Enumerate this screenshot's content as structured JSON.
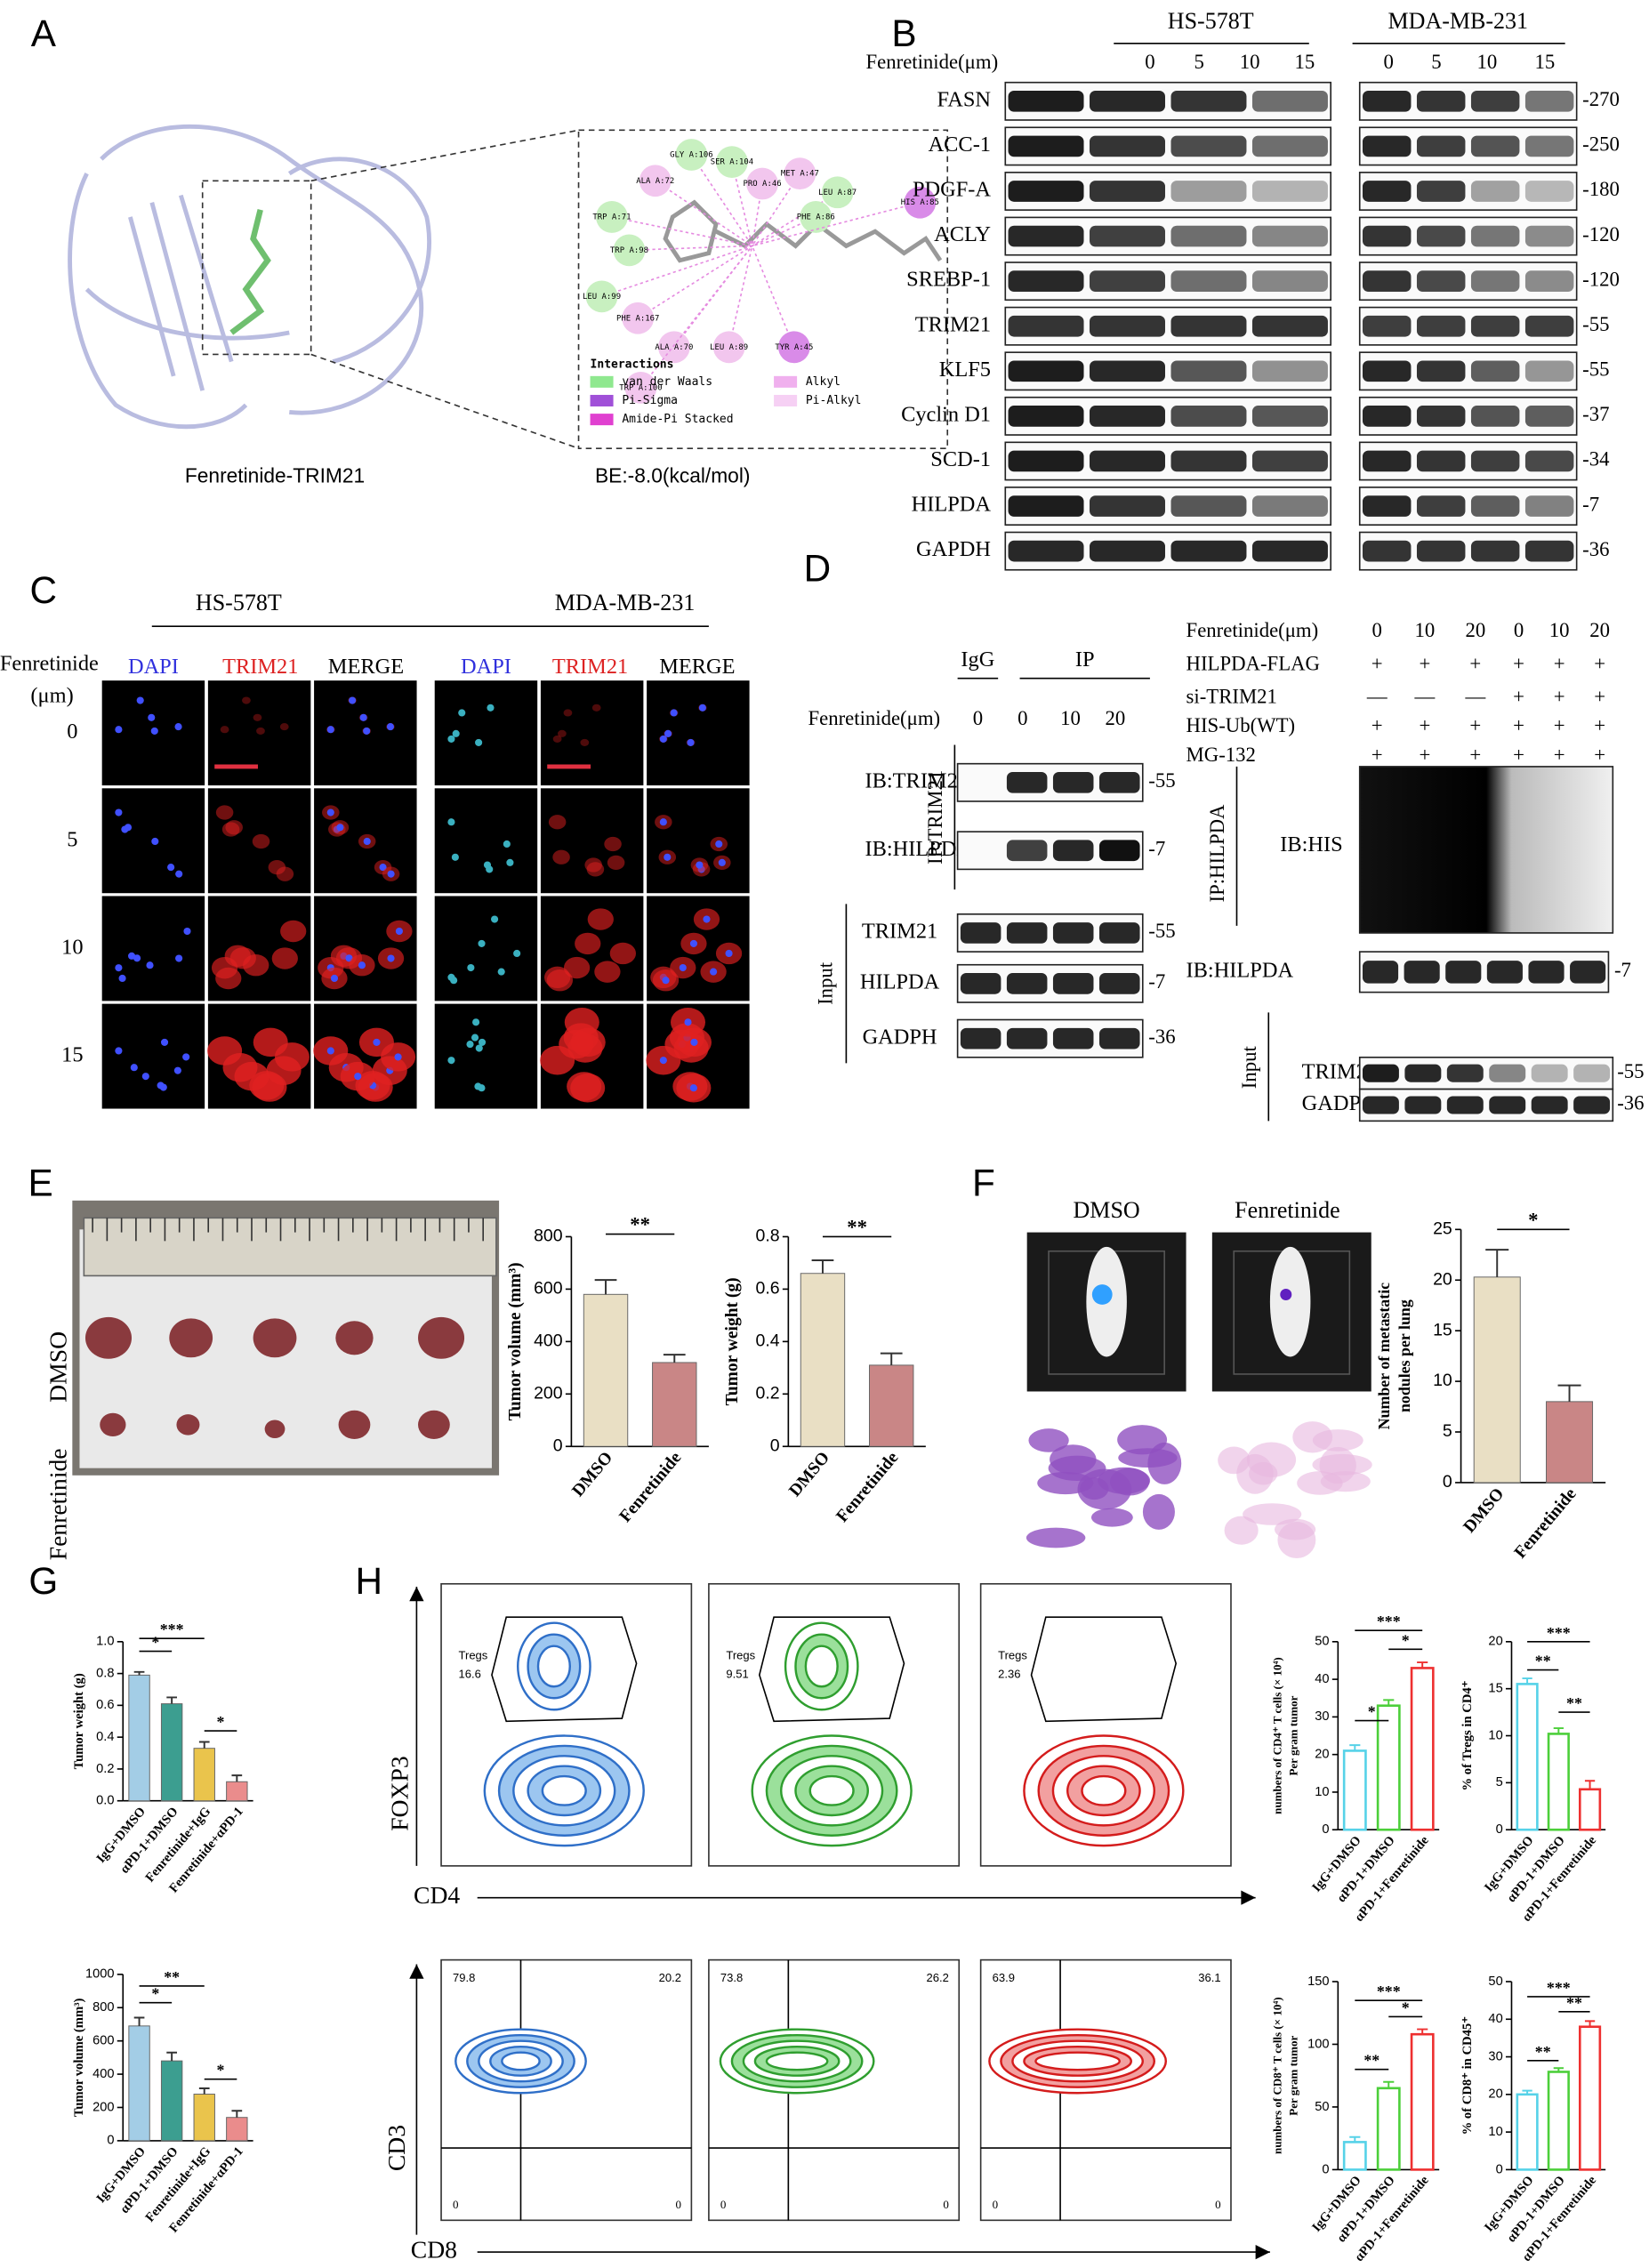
{
  "panel_labels": [
    "A",
    "B",
    "C",
    "D",
    "E",
    "F",
    "G",
    "H"
  ],
  "panel_a": {
    "caption": "Fenretinide-TRIM21",
    "binding_energy": "BE:-8.0(kcal/mol)",
    "residues": [
      "TRP A:71",
      "GLY A:106",
      "SER A:104",
      "ALA A:72",
      "TRP A:98",
      "PRO A:46",
      "MET A:47",
      "LEU A:87",
      "PHE A:86",
      "HIS A:85",
      "LEU A:99",
      "PHE A:167",
      "ALA A:70",
      "LEU A:89",
      "TYR A:45",
      "TRP A:100"
    ],
    "legend_title": "Interactions",
    "legend": [
      "van der Waals",
      "Pi-Sigma",
      "Amide-Pi Stacked",
      "Alkyl",
      "Pi-Alkyl"
    ]
  },
  "panel_b": {
    "cell_lines": [
      "HS-578T",
      "MDA-MB-231"
    ],
    "dose_label": "Fenretinide(μm)",
    "doses": [
      "0",
      "5",
      "10",
      "15"
    ],
    "proteins": [
      "FASN",
      "ACC-1",
      "PDGF-A",
      "ACLY",
      "SREBP-1",
      "TRIM21",
      "KLF5",
      "Cyclin D1",
      "SCD-1",
      "HILPDA",
      "GAPDH"
    ],
    "sizes": [
      "-270",
      "-250",
      "-180",
      "-120",
      "-120",
      "-55",
      "-55",
      "-37",
      "-34",
      "-7",
      "-36"
    ]
  },
  "panel_c": {
    "cell_lines": [
      "HS-578T",
      "MDA-MB-231"
    ],
    "stains": [
      "DAPI",
      "TRIM21",
      "MERGE"
    ],
    "row_label": [
      "Fenretinide",
      "(μm)"
    ],
    "doses": [
      "0",
      "5",
      "10",
      "15"
    ]
  },
  "panel_d": {
    "left": {
      "groups": [
        "IgG",
        "IP"
      ],
      "dose_label": "Fenretinide(μm)",
      "doses": [
        "0",
        "0",
        "10",
        "20"
      ],
      "ip_label": "IP:TRIM21",
      "ip_blots": [
        "IB:TRIM21",
        "IB:HILPDA"
      ],
      "ip_sizes": [
        "-55",
        "-7"
      ],
      "input_label": "Input",
      "input_blots": [
        "TRIM21",
        "HILPDA",
        "GADPH"
      ],
      "input_sizes": [
        "-55",
        "-7",
        "-36"
      ]
    },
    "right": {
      "conditions": [
        {
          "name": "Fenretinide(μm)",
          "marks": [
            "0",
            "10",
            "20",
            "0",
            "10",
            "20"
          ]
        },
        {
          "name": "HILPDA-FLAG",
          "marks": [
            "+",
            "+",
            "+",
            "+",
            "+",
            "+"
          ]
        },
        {
          "name": "si-TRIM21",
          "marks": [
            "—",
            "—",
            "—",
            "+",
            "+",
            "+"
          ]
        },
        {
          "name": "HIS-Ub(WT)",
          "marks": [
            "+",
            "+",
            "+",
            "+",
            "+",
            "+"
          ]
        },
        {
          "name": "MG-132",
          "marks": [
            "+",
            "+",
            "+",
            "+",
            "+",
            "+"
          ]
        }
      ],
      "ip_label": "IP:HILPDA",
      "ip_blots": [
        {
          "name": "IB:HIS"
        },
        {
          "name": "IB:HILPDA",
          "size": "-7"
        }
      ],
      "input_label": "Input",
      "input_blots": [
        {
          "name": "TRIM21",
          "size": "-55"
        },
        {
          "name": "GADPH",
          "size": "-36"
        }
      ]
    }
  },
  "panel_e": {
    "groups": [
      "DMSO",
      "Fenretinide"
    ]
  },
  "panel_f": {
    "groups": [
      "DMSO",
      "Fenretinide"
    ]
  },
  "panel_h": {
    "axes": [
      "FOXP3",
      "CD4",
      "CD3",
      "CD8"
    ],
    "gate": "Tregs",
    "tregs": [
      "16.6",
      "9.51",
      "2.36"
    ],
    "quadrants": [
      [
        "79.8",
        "20.2"
      ],
      [
        "73.8",
        "26.2"
      ],
      [
        "63.9",
        "36.1"
      ]
    ],
    "zero": "0"
  },
  "chart_data": [
    {
      "type": "bar",
      "ylabel": [
        "Tumor volume (mm³)"
      ],
      "categories": [
        "DMSO",
        "Fenretinide"
      ],
      "values": [
        580,
        320
      ],
      "errors": [
        55,
        30
      ],
      "colors": [
        "#e9dfc4",
        "#c98686"
      ],
      "ylim": [
        0,
        800
      ],
      "yticks": [
        0,
        200,
        400,
        600,
        800
      ],
      "significance": [
        "**"
      ]
    },
    {
      "type": "bar",
      "ylabel": [
        "Tumor weight  (g)"
      ],
      "categories": [
        "DMSO",
        "Fenretinide"
      ],
      "values": [
        0.66,
        0.31
      ],
      "errors": [
        0.05,
        0.045
      ],
      "colors": [
        "#e9dfc4",
        "#c98686"
      ],
      "ylim": [
        0,
        0.8
      ],
      "yticks": [
        0,
        0.2,
        0.4,
        0.6,
        0.8
      ],
      "significance": [
        "**"
      ]
    },
    {
      "type": "bar",
      "ylabel": [
        "Number of metastatic",
        "nodules per lung"
      ],
      "categories": [
        "DMSO",
        "Fenretinide"
      ],
      "values": [
        20.3,
        8
      ],
      "errors": [
        2.7,
        1.6
      ],
      "colors": [
        "#e9dfc4",
        "#c98686"
      ],
      "ylim": [
        0,
        25
      ],
      "yticks": [
        0,
        5,
        10,
        15,
        20,
        25
      ],
      "significance": [
        "*"
      ]
    },
    {
      "type": "bar",
      "ylabel": [
        "Tumor weight (g)"
      ],
      "categories": [
        "IgG+DMSO",
        "αPD-1+DMSO",
        "Fenretinide+IgG",
        "Fenretinide+αPD-1"
      ],
      "values": [
        0.79,
        0.61,
        0.33,
        0.12
      ],
      "errors": [
        0.02,
        0.04,
        0.04,
        0.04
      ],
      "colors": [
        "#a3cde6",
        "#3c9e90",
        "#eac44c",
        "#ea8c8c"
      ],
      "ylim": [
        0,
        1.0
      ],
      "yticks": [
        {
          "value": 0,
          "label": "0.0"
        },
        0.2,
        0.4,
        0.6,
        0.8,
        {
          "value": 1.0,
          "label": "1.0"
        }
      ],
      "significance": [
        "*",
        "***",
        "*"
      ]
    },
    {
      "type": "bar",
      "ylabel": [
        "Tumor volume (mm³)"
      ],
      "categories": [
        "IgG+DMSO",
        "αPD-1+DMSO",
        "Fenretinide+IgG",
        "Fenretinide+αPD-1"
      ],
      "values": [
        690,
        480,
        280,
        140
      ],
      "errors": [
        50,
        50,
        35,
        40
      ],
      "colors": [
        "#a3cde6",
        "#3c9e90",
        "#eac44c",
        "#ea8c8c"
      ],
      "ylim": [
        0,
        1000
      ],
      "yticks": [
        0,
        200,
        400,
        600,
        800,
        1000
      ],
      "significance": [
        "*",
        "**",
        "*"
      ]
    },
    {
      "type": "bar",
      "style": "outline",
      "ylabel": [
        "numbers of CD4⁺ T cells (× 10⁴)",
        "Per gram tumor"
      ],
      "categories": [
        "IgG+DMSO",
        "αPD-1+DMSO",
        "αPD-1+Fenretinide"
      ],
      "values": [
        21,
        33,
        43
      ],
      "errors": [
        1.5,
        1.5,
        1.5
      ],
      "colors": [
        "#56d2e8",
        "#4ccf3a",
        "#ee3030"
      ],
      "ylim": [
        0,
        50
      ],
      "yticks": [
        0,
        10,
        20,
        30,
        40,
        50
      ],
      "significance": [
        "*",
        "***",
        "*"
      ]
    },
    {
      "type": "bar",
      "style": "outline",
      "ylabel": [
        "% of Tregs  in CD4⁺"
      ],
      "categories": [
        "IgG+DMSO",
        "αPD-1+DMSO",
        "αPD-1+Fenretinide"
      ],
      "values": [
        15.5,
        10.2,
        4.3
      ],
      "errors": [
        0.6,
        0.6,
        0.9
      ],
      "colors": [
        "#56d2e8",
        "#4ccf3a",
        "#ee3030"
      ],
      "ylim": [
        0,
        20
      ],
      "yticks": [
        0,
        5,
        10,
        15,
        20
      ],
      "significance": [
        "**",
        "***",
        "**"
      ]
    },
    {
      "type": "bar",
      "style": "outline",
      "ylabel": [
        "numbers of CD8⁺ T cells (× 10⁴)",
        "Per gram tumor"
      ],
      "categories": [
        "IgG+DMSO",
        "αPD-1+DMSO",
        "αPD-1+Fenretinide"
      ],
      "values": [
        22,
        65,
        108
      ],
      "errors": [
        4,
        5,
        4
      ],
      "colors": [
        "#56d2e8",
        "#4ccf3a",
        "#ee3030"
      ],
      "ylim": [
        0,
        150
      ],
      "yticks": [
        0,
        50,
        100,
        150
      ],
      "significance": [
        "**",
        "***",
        "*"
      ]
    },
    {
      "type": "bar",
      "style": "outline",
      "ylabel": [
        "% of CD8⁺ in CD45⁺"
      ],
      "categories": [
        "IgG+DMSO",
        "αPD-1+DMSO",
        "αPD-1+Fenretinide"
      ],
      "values": [
        20,
        26,
        38
      ],
      "errors": [
        1,
        1,
        1.5
      ],
      "colors": [
        "#56d2e8",
        "#4ccf3a",
        "#ee3030"
      ],
      "ylim": [
        0,
        50
      ],
      "yticks": [
        0,
        10,
        20,
        30,
        40,
        50
      ],
      "significance": [
        "**",
        "***",
        "**"
      ]
    }
  ]
}
